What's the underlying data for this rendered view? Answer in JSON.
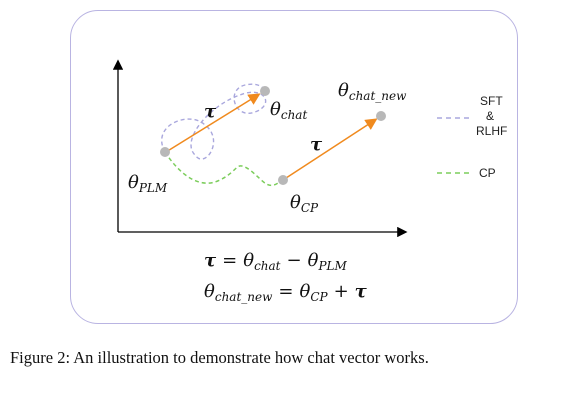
{
  "diagram": {
    "labels": {
      "theta_symbol": "θ",
      "plm_sub": "PLM",
      "chat_sub": "chat",
      "chat_new_sub": "chat_new",
      "cp_sub": "CP",
      "tau": "τ"
    },
    "legend": [
      {
        "line1": "SFT",
        "line2": "&",
        "line3": "RLHF",
        "color": "#a9a7dd",
        "style": "dashed"
      },
      {
        "line1": "CP",
        "color": "#7ccd5c",
        "style": "dashed"
      }
    ],
    "equations": [
      {
        "lhs": "τ",
        "op": "=",
        "t1": "θ",
        "s1": "chat",
        "minus": "−",
        "t2": "θ",
        "s2": "PLM"
      },
      {
        "lhs": "θ",
        "lhs_sub": "chat_new",
        "op": "=",
        "t1": "θ",
        "s1": "CP",
        "plus": "+",
        "t2": "τ"
      }
    ],
    "colors": {
      "arrow": "#f08a1e",
      "point": "#b8b8b8",
      "frame": "#b9b4e2",
      "axis": "#000000"
    }
  },
  "caption": "Figure 2: An illustration to demonstrate how chat vector works."
}
